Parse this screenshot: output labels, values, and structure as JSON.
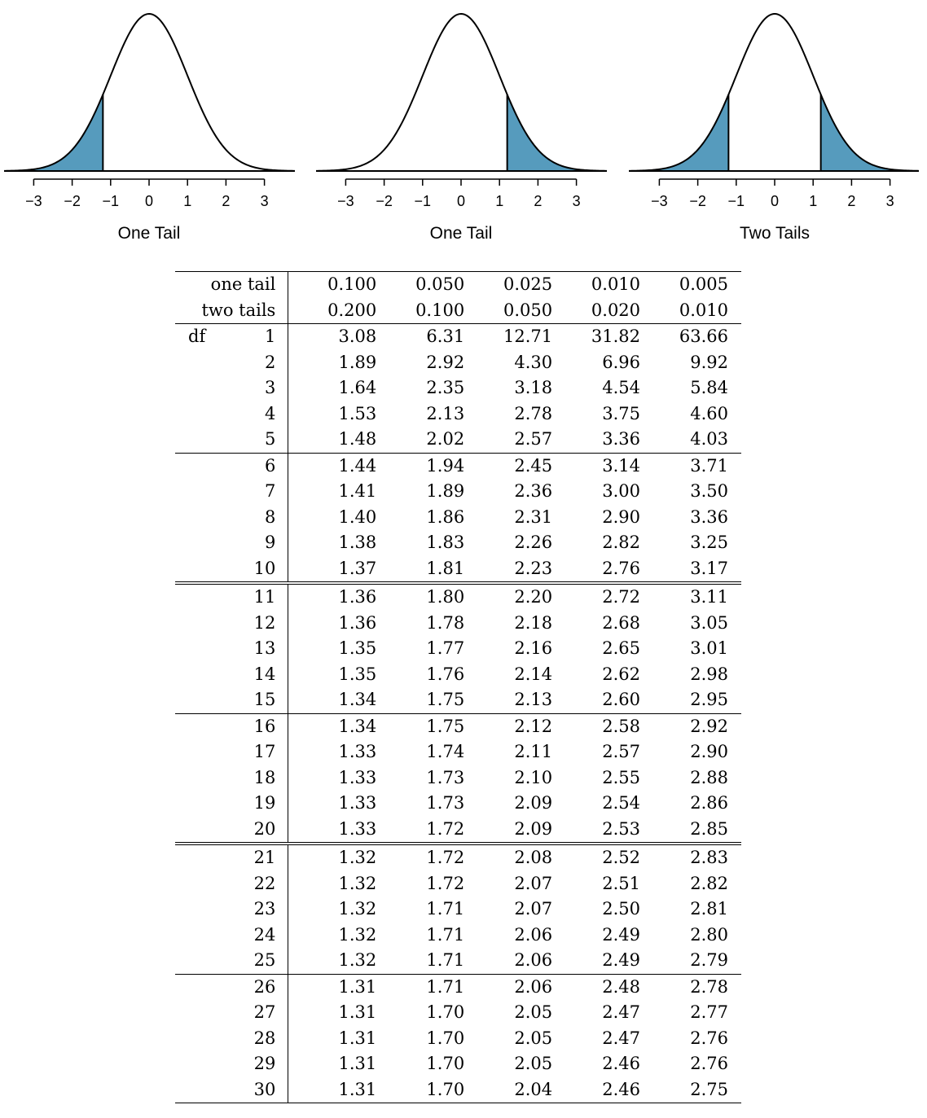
{
  "panels": [
    {
      "label": "One Tail",
      "shade": "left"
    },
    {
      "label": "One Tail",
      "shade": "right"
    },
    {
      "label": "Two Tails",
      "shade": "both"
    }
  ],
  "tick_labels": [
    "−3",
    "−2",
    "−1",
    "0",
    "1",
    "2",
    "3"
  ],
  "shade_color": "#569BBD",
  "cutoff": 1.2,
  "table": {
    "header_rows": [
      {
        "label": "one tail",
        "values": [
          "0.100",
          "0.050",
          "0.025",
          "0.010",
          "0.005"
        ]
      },
      {
        "label": "two tails",
        "values": [
          "0.200",
          "0.100",
          "0.050",
          "0.020",
          "0.010"
        ]
      }
    ],
    "df_label": "df",
    "rows": [
      {
        "df": "1",
        "values": [
          "3.08",
          "6.31",
          "12.71",
          "31.82",
          "63.66"
        ]
      },
      {
        "df": "2",
        "values": [
          "1.89",
          "2.92",
          "4.30",
          "6.96",
          "9.92"
        ]
      },
      {
        "df": "3",
        "values": [
          "1.64",
          "2.35",
          "3.18",
          "4.54",
          "5.84"
        ]
      },
      {
        "df": "4",
        "values": [
          "1.53",
          "2.13",
          "2.78",
          "3.75",
          "4.60"
        ]
      },
      {
        "df": "5",
        "values": [
          "1.48",
          "2.02",
          "2.57",
          "3.36",
          "4.03"
        ]
      },
      {
        "df": "6",
        "values": [
          "1.44",
          "1.94",
          "2.45",
          "3.14",
          "3.71"
        ]
      },
      {
        "df": "7",
        "values": [
          "1.41",
          "1.89",
          "2.36",
          "3.00",
          "3.50"
        ]
      },
      {
        "df": "8",
        "values": [
          "1.40",
          "1.86",
          "2.31",
          "2.90",
          "3.36"
        ]
      },
      {
        "df": "9",
        "values": [
          "1.38",
          "1.83",
          "2.26",
          "2.82",
          "3.25"
        ]
      },
      {
        "df": "10",
        "values": [
          "1.37",
          "1.81",
          "2.23",
          "2.76",
          "3.17"
        ]
      },
      {
        "df": "11",
        "values": [
          "1.36",
          "1.80",
          "2.20",
          "2.72",
          "3.11"
        ]
      },
      {
        "df": "12",
        "values": [
          "1.36",
          "1.78",
          "2.18",
          "2.68",
          "3.05"
        ]
      },
      {
        "df": "13",
        "values": [
          "1.35",
          "1.77",
          "2.16",
          "2.65",
          "3.01"
        ]
      },
      {
        "df": "14",
        "values": [
          "1.35",
          "1.76",
          "2.14",
          "2.62",
          "2.98"
        ]
      },
      {
        "df": "15",
        "values": [
          "1.34",
          "1.75",
          "2.13",
          "2.60",
          "2.95"
        ]
      },
      {
        "df": "16",
        "values": [
          "1.34",
          "1.75",
          "2.12",
          "2.58",
          "2.92"
        ]
      },
      {
        "df": "17",
        "values": [
          "1.33",
          "1.74",
          "2.11",
          "2.57",
          "2.90"
        ]
      },
      {
        "df": "18",
        "values": [
          "1.33",
          "1.73",
          "2.10",
          "2.55",
          "2.88"
        ]
      },
      {
        "df": "19",
        "values": [
          "1.33",
          "1.73",
          "2.09",
          "2.54",
          "2.86"
        ]
      },
      {
        "df": "20",
        "values": [
          "1.33",
          "1.72",
          "2.09",
          "2.53",
          "2.85"
        ]
      },
      {
        "df": "21",
        "values": [
          "1.32",
          "1.72",
          "2.08",
          "2.52",
          "2.83"
        ]
      },
      {
        "df": "22",
        "values": [
          "1.32",
          "1.72",
          "2.07",
          "2.51",
          "2.82"
        ]
      },
      {
        "df": "23",
        "values": [
          "1.32",
          "1.71",
          "2.07",
          "2.50",
          "2.81"
        ]
      },
      {
        "df": "24",
        "values": [
          "1.32",
          "1.71",
          "2.06",
          "2.49",
          "2.80"
        ]
      },
      {
        "df": "25",
        "values": [
          "1.32",
          "1.71",
          "2.06",
          "2.49",
          "2.79"
        ]
      },
      {
        "df": "26",
        "values": [
          "1.31",
          "1.71",
          "2.06",
          "2.48",
          "2.78"
        ]
      },
      {
        "df": "27",
        "values": [
          "1.31",
          "1.70",
          "2.05",
          "2.47",
          "2.77"
        ]
      },
      {
        "df": "28",
        "values": [
          "1.31",
          "1.70",
          "2.05",
          "2.47",
          "2.76"
        ]
      },
      {
        "df": "29",
        "values": [
          "1.31",
          "1.70",
          "2.05",
          "2.46",
          "2.76"
        ]
      },
      {
        "df": "30",
        "values": [
          "1.31",
          "1.70",
          "2.04",
          "2.46",
          "2.75"
        ]
      }
    ]
  }
}
